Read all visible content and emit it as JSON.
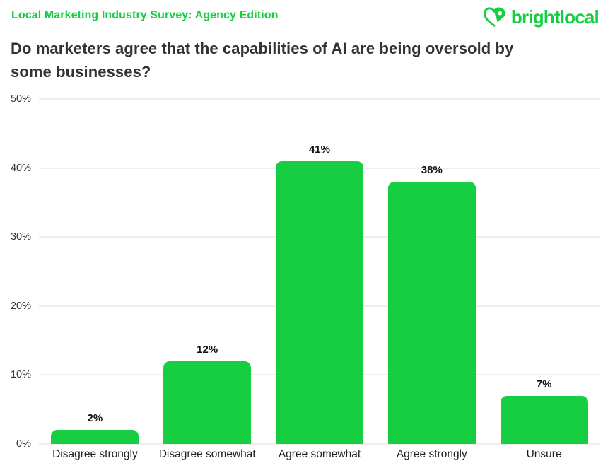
{
  "header": {
    "eyebrow": "Local Marketing Industry Survey: Agency Edition",
    "title": "Do marketers agree that the capabilities of AI are being oversold by\nsome businesses?",
    "logo_text": "brightlocal"
  },
  "colors": {
    "brand_green": "#17CE43",
    "title_dark": "#333333",
    "gridline": "#EFEFEF",
    "tick_label": "#333333",
    "x_axis_label": "#1D1D1F",
    "value_label": "#111111"
  },
  "chart_data": {
    "type": "bar",
    "title": "Do marketers agree that the capabilities of AI are being oversold by some businesses?",
    "categories": [
      "Disagree strongly",
      "Disagree somewhat",
      "Agree somewhat",
      "Agree strongly",
      "Unsure"
    ],
    "values": [
      2,
      12,
      41,
      38,
      7
    ],
    "value_labels": [
      "2%",
      "12%",
      "41%",
      "38%",
      "7%"
    ],
    "xlabel": "",
    "ylabel": "",
    "ylim": [
      0,
      50
    ],
    "yticks": [
      0,
      10,
      20,
      30,
      40,
      50
    ],
    "ytick_labels": [
      "0%",
      "10%",
      "20%",
      "30%",
      "40%",
      "50%"
    ],
    "grid": true,
    "legend": false,
    "bar_color": "#17CE43"
  }
}
